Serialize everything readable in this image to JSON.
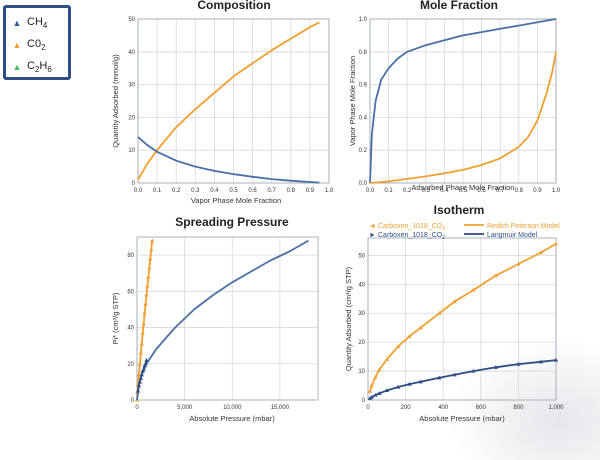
{
  "legend": {
    "items": [
      {
        "base": "CH",
        "sub": "4",
        "color": "#2e5a9c",
        "marker": "▲"
      },
      {
        "base": "C0",
        "sub": "2",
        "color": "#f0a030",
        "marker": "▲"
      },
      {
        "base": "C",
        "sub": "2",
        "tail": "H",
        "sub2": "6",
        "color": "#3fbf4f",
        "marker": "▲"
      }
    ]
  },
  "chart_data": [
    {
      "type": "line",
      "title": "Composition",
      "xlabel": "Vapor Phase Mole Fraction",
      "ylabel": "Quantity Adsorbed (mmol/g)",
      "xlim": [
        0,
        1
      ],
      "ylim": [
        0,
        50
      ],
      "xticks": [
        "0.0",
        "0.1",
        "0.2",
        "0.3",
        "0.4",
        "0.5",
        "0.6",
        "0.7",
        "0.8",
        "0.9",
        "1.0"
      ],
      "yticks": [
        "0",
        "10",
        "20",
        "30",
        "40",
        "50"
      ],
      "grid": true,
      "series": [
        {
          "color": "#f0a030",
          "x": [
            0,
            0.05,
            0.1,
            0.2,
            0.3,
            0.4,
            0.5,
            0.6,
            0.7,
            0.8,
            0.9,
            0.95
          ],
          "y": [
            1,
            6,
            10,
            17,
            22.5,
            27.5,
            32.5,
            36.5,
            40.5,
            44,
            47.5,
            49
          ]
        },
        {
          "color": "#4a6fa5",
          "x": [
            0,
            0.05,
            0.1,
            0.2,
            0.3,
            0.4,
            0.5,
            0.6,
            0.7,
            0.8,
            0.9,
            0.95
          ],
          "y": [
            14,
            11.5,
            9.5,
            6.8,
            5,
            3.7,
            2.7,
            1.9,
            1.2,
            0.7,
            0.3,
            0.1
          ]
        }
      ]
    },
    {
      "type": "line",
      "title": "Mole Fraction",
      "xlabel": "Adsorbed Phase Mole Fraction",
      "ylabel": "Vapor Phase Mole Fraction",
      "xlim": [
        0,
        1
      ],
      "ylim": [
        0,
        1
      ],
      "xticks": [
        "0.0",
        "0.1",
        "0.2",
        "0.3",
        "0.4",
        "0.5",
        "0.6",
        "0.7",
        "0.8",
        "0.9",
        "1.0"
      ],
      "yticks": [
        "0.0",
        "0.2",
        "0.4",
        "0.6",
        "0.8",
        "1.0"
      ],
      "grid": true,
      "series": [
        {
          "color": "#4a6fa5",
          "x": [
            0,
            0.01,
            0.03,
            0.06,
            0.1,
            0.15,
            0.2,
            0.3,
            0.4,
            0.5,
            0.6,
            0.7,
            0.8,
            0.9,
            1.0
          ],
          "y": [
            0,
            0.3,
            0.5,
            0.63,
            0.7,
            0.76,
            0.8,
            0.84,
            0.87,
            0.9,
            0.92,
            0.94,
            0.96,
            0.98,
            1.0
          ]
        },
        {
          "color": "#f0a030",
          "x": [
            0,
            0.1,
            0.2,
            0.3,
            0.4,
            0.5,
            0.6,
            0.7,
            0.8,
            0.85,
            0.9,
            0.95,
            0.98,
            1.0
          ],
          "y": [
            0,
            0.01,
            0.025,
            0.04,
            0.06,
            0.08,
            0.11,
            0.15,
            0.22,
            0.28,
            0.38,
            0.55,
            0.68,
            0.8
          ]
        }
      ]
    },
    {
      "type": "line",
      "title": "Spreading Pressure",
      "xlabel": "Absolute Pressure (mbar)",
      "ylabel": "Pi* (cm³/g STP)",
      "xlim": [
        0,
        19000
      ],
      "ylim": [
        0,
        90
      ],
      "xticks": [
        {
          "v": 0,
          "label": "0"
        },
        {
          "v": 5000,
          "label": "5,000"
        },
        {
          "v": 10000,
          "label": "10,000"
        },
        {
          "v": 15000,
          "label": "15,000"
        }
      ],
      "yticks": [
        {
          "v": 0,
          "label": "0"
        },
        {
          "v": 20,
          "label": "20"
        },
        {
          "v": 40,
          "label": "40"
        },
        {
          "v": 60,
          "label": "60"
        },
        {
          "v": 80,
          "label": "80"
        }
      ],
      "grid": true,
      "series": [
        {
          "color": "#f0a030",
          "markers": true,
          "x": [
            0,
            50,
            120,
            200,
            300,
            400,
            500,
            600,
            700,
            800,
            900,
            1000,
            1100,
            1200,
            1300,
            1400,
            1500,
            1600
          ],
          "y": [
            0,
            4,
            9,
            14,
            20,
            26,
            31,
            37,
            42,
            48,
            53,
            58,
            63,
            68,
            73,
            78,
            83,
            88
          ]
        },
        {
          "color": "#4a6fa5",
          "markers": false,
          "x": [
            0,
            200,
            500,
            1000,
            2000,
            3000,
            4000,
            5000,
            6000,
            8000,
            10000,
            12000,
            14000,
            16000,
            18000
          ],
          "y": [
            0,
            8,
            14,
            20,
            28,
            34,
            40,
            45,
            50,
            58,
            65,
            71,
            77,
            82,
            88
          ]
        },
        {
          "color": "#2e4e86",
          "markers": true,
          "x": [
            100,
            200,
            300,
            400,
            500,
            600,
            700,
            800,
            900,
            1000
          ],
          "y": [
            5,
            8,
            10,
            12,
            14,
            16,
            17,
            19,
            20,
            22
          ]
        }
      ]
    },
    {
      "type": "scatter",
      "title": "Isotherm",
      "xlabel": "Absolute Pressure (mbar)",
      "ylabel": "Quantity Adsorbed (cm³/g STP)",
      "xlim": [
        0,
        1000
      ],
      "ylim": [
        0,
        56
      ],
      "xticks": [
        {
          "v": 0,
          "label": "0"
        },
        {
          "v": 200,
          "label": "200"
        },
        {
          "v": 400,
          "label": "400"
        },
        {
          "v": 600,
          "label": "600"
        },
        {
          "v": 800,
          "label": "800"
        },
        {
          "v": 1000,
          "label": "1,000"
        }
      ],
      "yticks": [
        {
          "v": 0,
          "label": "0"
        },
        {
          "v": 10,
          "label": "10"
        },
        {
          "v": 20,
          "label": "20"
        },
        {
          "v": 30,
          "label": "30"
        },
        {
          "v": 40,
          "label": "40"
        },
        {
          "v": 50,
          "label": "50"
        }
      ],
      "grid": true,
      "legend": [
        {
          "marker": "◄",
          "color": "#f0a030",
          "text": "Carboxen_1018_CO",
          "sub": "2",
          "line_color": "#f0a030",
          "line_text": "Redich Peterson Model"
        },
        {
          "marker": "►",
          "color": "#2e4e86",
          "text": "Carboxen_1018_CO",
          "sub": "2",
          "line_color": "#2e4e86",
          "line_text": "Langmuir Model"
        }
      ],
      "series": [
        {
          "color": "#f0a030",
          "markers": true,
          "x": [
            10,
            20,
            40,
            60,
            100,
            160,
            220,
            280,
            380,
            460,
            560,
            680,
            800,
            920,
            1000
          ],
          "y": [
            3,
            5,
            8,
            10.5,
            14,
            18.5,
            22,
            25,
            30,
            34,
            38,
            43,
            47,
            51,
            54
          ]
        },
        {
          "color": "#2e4e86",
          "markers": true,
          "x": [
            10,
            20,
            40,
            60,
            100,
            160,
            220,
            280,
            380,
            460,
            560,
            680,
            800,
            920,
            1000
          ],
          "y": [
            0.6,
            1,
            1.7,
            2.3,
            3.3,
            4.5,
            5.5,
            6.3,
            7.7,
            8.7,
            10,
            11.3,
            12.4,
            13.2,
            13.8
          ]
        }
      ]
    }
  ]
}
